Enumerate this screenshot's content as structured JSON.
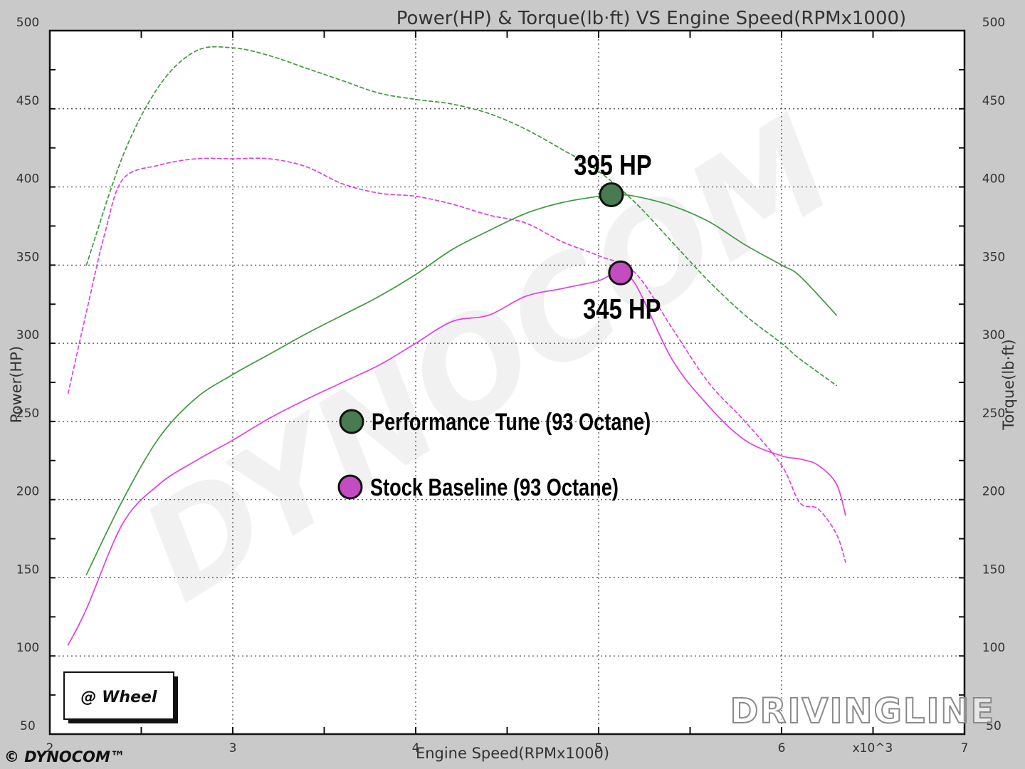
{
  "chart_data": {
    "type": "line",
    "title": "Power(HP) & Torque(lb·ft) VS Engine Speed(RPMx1000)",
    "xlabel": "Engine Speed(RPMx1000)",
    "ylabel_left": "Power(HP)",
    "ylabel_right": "Torque(lb·ft)",
    "x_multiplier_label": "x10^3",
    "xlim": [
      2,
      7
    ],
    "ylim": [
      50,
      500
    ],
    "x_ticks": [
      "2",
      "3",
      "4",
      "5",
      "6",
      "7"
    ],
    "y_ticks": [
      "500",
      "450",
      "400",
      "350",
      "300",
      "250",
      "200",
      "150",
      "100",
      "50"
    ],
    "grid": true,
    "series": [
      {
        "name": "Performance Tune (93 Octane)",
        "measure": "power",
        "color": "#3f9a3f",
        "dash": "solid",
        "x": [
          2.2,
          2.4,
          2.6,
          2.8,
          3.0,
          3.2,
          3.4,
          3.6,
          3.8,
          4.0,
          4.2,
          4.4,
          4.6,
          4.8,
          5.0,
          5.1,
          5.2,
          5.4,
          5.6,
          5.8,
          6.0,
          6.1,
          6.3
        ],
        "y": [
          152,
          200,
          240,
          265,
          280,
          293,
          306,
          318,
          330,
          344,
          360,
          372,
          383,
          390,
          394,
          395,
          394,
          388,
          378,
          363,
          350,
          343,
          318
        ]
      },
      {
        "name": "Stock Baseline (93 Octane)",
        "measure": "power",
        "color": "#e23fe2",
        "dash": "solid",
        "x": [
          2.1,
          2.2,
          2.4,
          2.6,
          2.8,
          3.0,
          3.2,
          3.4,
          3.6,
          3.8,
          4.0,
          4.2,
          4.4,
          4.6,
          4.8,
          5.0,
          5.1,
          5.2,
          5.4,
          5.6,
          5.8,
          6.0,
          6.1,
          6.2,
          6.3,
          6.35
        ],
        "y": [
          107,
          130,
          185,
          210,
          225,
          238,
          252,
          264,
          275,
          286,
          300,
          314,
          318,
          330,
          335,
          340,
          345,
          338,
          290,
          260,
          238,
          228,
          226,
          222,
          210,
          190
        ]
      },
      {
        "name": "Performance Tune (93 Octane)",
        "measure": "torque",
        "color": "#3f9a3f",
        "dash": "dashed",
        "x": [
          2.2,
          2.4,
          2.6,
          2.8,
          3.0,
          3.2,
          3.4,
          3.6,
          3.8,
          4.0,
          4.2,
          4.4,
          4.6,
          4.8,
          5.0,
          5.2,
          5.4,
          5.6,
          5.8,
          6.0,
          6.1,
          6.3
        ],
        "y": [
          350,
          420,
          465,
          487,
          489,
          484,
          476,
          468,
          460,
          456,
          453,
          447,
          437,
          424,
          410,
          390,
          365,
          340,
          318,
          300,
          290,
          273
        ]
      },
      {
        "name": "Stock Baseline (93 Octane)",
        "measure": "torque",
        "color": "#e23fe2",
        "dash": "dashed",
        "x": [
          2.1,
          2.2,
          2.3,
          2.4,
          2.6,
          2.8,
          3.0,
          3.2,
          3.4,
          3.6,
          3.8,
          4.0,
          4.2,
          4.4,
          4.6,
          4.8,
          5.0,
          5.2,
          5.4,
          5.6,
          5.8,
          6.0,
          6.1,
          6.2,
          6.3,
          6.35
        ],
        "y": [
          268,
          320,
          370,
          405,
          414,
          418,
          418,
          418,
          413,
          402,
          396,
          394,
          389,
          382,
          377,
          365,
          356,
          345,
          310,
          275,
          250,
          222,
          198,
          194,
          178,
          160
        ]
      }
    ],
    "annotations": [
      {
        "text": "395 HP",
        "x": 5.07,
        "y": 395,
        "marker_color": "#4a7a50"
      },
      {
        "text": "345 HP",
        "x": 5.12,
        "y": 345,
        "marker_color": "#c24cc0"
      }
    ],
    "legend": {
      "placement": "center",
      "items": [
        {
          "label": "Performance Tune (93 Octane)",
          "color": "#4a7a50"
        },
        {
          "label": "Stock Baseline (93 Octane)",
          "color": "#c24cc0"
        }
      ]
    },
    "badge": "@ Wheel",
    "copyright": "© DYNOCOM™",
    "watermark_faint": "DYNOCOM",
    "watermark": "DRIVINGLINE"
  }
}
